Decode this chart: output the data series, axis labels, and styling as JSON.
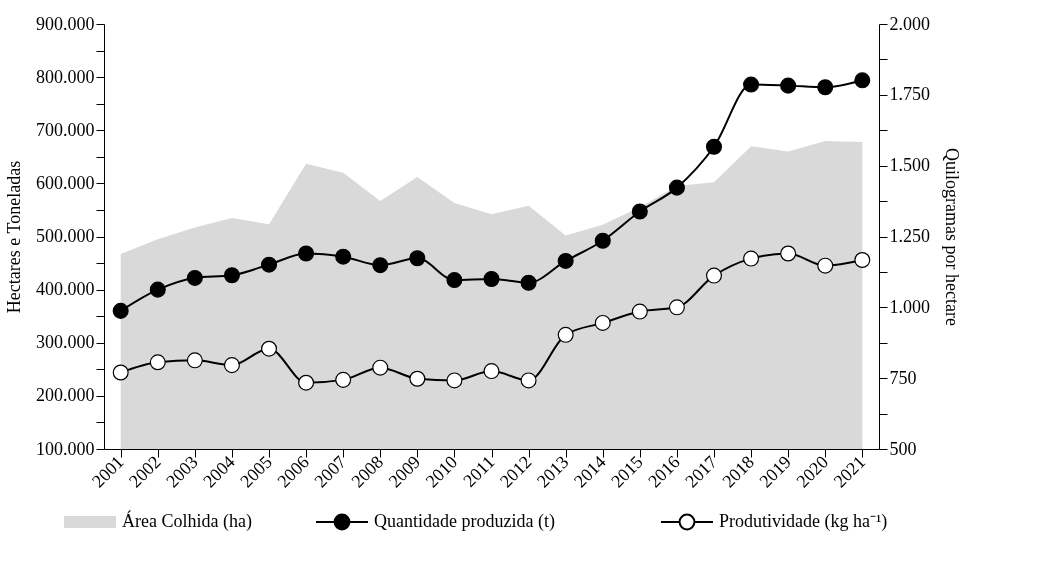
{
  "chart_data": {
    "type": "line",
    "ylabel": "Hectares e Toneladas",
    "y2label": "Quilogramas por hectare",
    "categories": [
      "2001",
      "2002",
      "2003",
      "2004",
      "2005",
      "2006",
      "2007",
      "2008",
      "2009",
      "2010",
      "2011",
      "2012",
      "2013",
      "2014",
      "2015",
      "2016",
      "2017",
      "2018",
      "2019",
      "2020",
      "2021"
    ],
    "series": [
      {
        "name": "Área Colhida (ha)",
        "type": "area",
        "color": "#d9d9d9",
        "marker": "none",
        "values": [
          467000,
          495000,
          517000,
          535000,
          523000,
          637000,
          620000,
          567000,
          612000,
          563000,
          542000,
          558000,
          502000,
          522000,
          555000,
          595000,
          602000,
          670000,
          660000,
          680000,
          678000
        ]
      },
      {
        "name": "Quantidade produzida (t)",
        "color": "#000000",
        "values": [
          360000,
          400000,
          422000,
          427000,
          447000,
          468000,
          462000,
          446000,
          459000,
          418000,
          420000,
          413000,
          454000,
          492000,
          547000,
          592000,
          669000,
          786000,
          784000,
          781000,
          794000
        ]
      },
      {
        "name": "Produtividade (kg ha⁻¹)",
        "color": "#ffffff",
        "axis": "y2",
        "values": [
          770,
          806,
          813,
          796,
          854,
          734,
          744,
          787,
          748,
          742,
          775,
          742,
          903,
          945,
          985,
          1000,
          1112,
          1172,
          1190,
          1147,
          1167
        ]
      }
    ],
    "ylim": [
      100000,
      900000
    ],
    "yticks": [
      {
        "value": 100000,
        "label": "100.000"
      },
      {
        "value": 150000,
        "label": null
      },
      {
        "value": 200000,
        "label": "200.000"
      },
      {
        "value": 250000,
        "label": null
      },
      {
        "value": 300000,
        "label": "300.000"
      },
      {
        "value": 350000,
        "label": null
      },
      {
        "value": 400000,
        "label": "400.000"
      },
      {
        "value": 450000,
        "label": null
      },
      {
        "value": 500000,
        "label": "500.000"
      },
      {
        "value": 550000,
        "label": null
      },
      {
        "value": 600000,
        "label": "600.000"
      },
      {
        "value": 650000,
        "label": null
      },
      {
        "value": 700000,
        "label": "700.000"
      },
      {
        "value": 750000,
        "label": null
      },
      {
        "value": 800000,
        "label": "800.000"
      },
      {
        "value": 850000,
        "label": null
      },
      {
        "value": 900000,
        "label": "900.000"
      }
    ],
    "y2lim": [
      500,
      2000
    ],
    "y2ticks": [
      500,
      {
        "value": 625,
        "label": null
      },
      750,
      {
        "value": 875,
        "label": null
      },
      {
        "value": 1000,
        "label": "1.000"
      },
      {
        "value": 1125,
        "label": null
      },
      {
        "value": 1250,
        "label": "1.250"
      },
      {
        "value": 1375,
        "label": null
      },
      {
        "value": 1500,
        "label": "1.500"
      },
      {
        "value": 1625,
        "label": null
      },
      {
        "value": 1750,
        "label": "1.750"
      },
      {
        "value": 1875,
        "label": null
      },
      {
        "value": 2000,
        "label": "2.000"
      }
    ],
    "grid": false,
    "legend": "bottom",
    "marker": "circle",
    "line_style": "solid"
  }
}
